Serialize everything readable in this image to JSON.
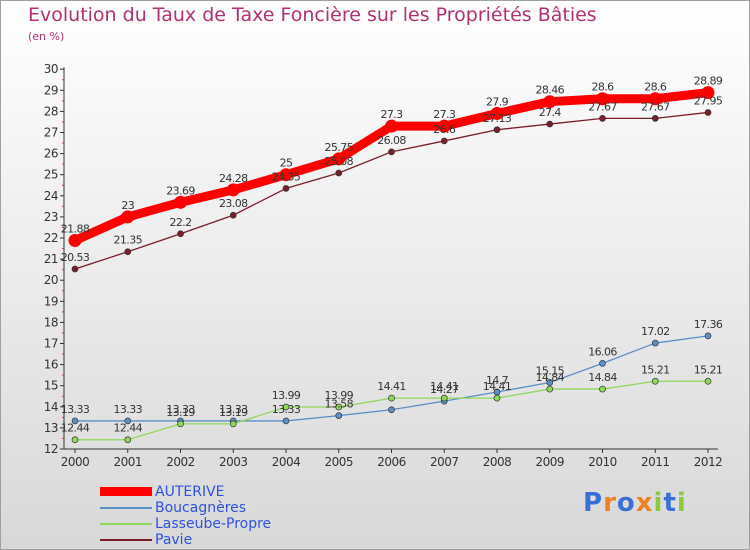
{
  "chart_data": {
    "type": "line",
    "title": "Evolution du Taux de Taxe Foncière sur les Propriétés Bâties",
    "subtitle": "(en %)",
    "x": [
      "2000",
      "2001",
      "2002",
      "2003",
      "2004",
      "2005",
      "2006",
      "2007",
      "2008",
      "2009",
      "2010",
      "2011",
      "2012"
    ],
    "ylim": [
      12,
      30
    ],
    "yticks": [
      "12",
      "13",
      "14",
      "15",
      "16",
      "17",
      "18",
      "19",
      "20",
      "21",
      "22",
      "23",
      "24",
      "25",
      "26",
      "27",
      "28",
      "29",
      "30"
    ],
    "grid": false,
    "legend_position": "bottom-left",
    "series": [
      {
        "name": "AUTERIVE",
        "color": "#ff0000",
        "values": [
          21.88,
          23,
          23.69,
          24.28,
          25,
          25.75,
          27.3,
          27.3,
          27.9,
          28.46,
          28.6,
          28.6,
          28.89
        ],
        "labels": [
          "21.88",
          "23",
          "23.69",
          "24.28",
          "25",
          "25.75",
          "27.3",
          "27.3",
          "27.9",
          "28.46",
          "28.6",
          "28.6",
          "28.89"
        ]
      },
      {
        "name": "Boucagnères",
        "color": "#5a8fc8",
        "values": [
          13.33,
          13.33,
          13.33,
          13.33,
          13.33,
          13.58,
          13.86,
          14.27,
          14.7,
          15.15,
          16.06,
          17.02,
          17.36
        ],
        "labels": [
          "13.33",
          "13.33",
          "13.33",
          "13.33",
          "13.33",
          "13.58",
          "",
          "14.27",
          "14.7",
          "15.15",
          "16.06",
          "17.02",
          "17.36"
        ]
      },
      {
        "name": "Lasseube-Propre",
        "color": "#8ed85a",
        "values": [
          12.44,
          12.44,
          13.19,
          13.19,
          13.99,
          13.99,
          14.41,
          14.41,
          14.41,
          14.84,
          14.84,
          15.21,
          15.21
        ],
        "labels": [
          "12.44",
          "12.44",
          "13.19",
          "13.19",
          "13.99",
          "13.99",
          "14.41",
          "14.41",
          "14.41",
          "14.84",
          "14.84",
          "15.21",
          "15.21"
        ]
      },
      {
        "name": "Pavie",
        "color": "#7a1e2a",
        "values": [
          20.53,
          21.35,
          22.2,
          23.08,
          24.35,
          25.08,
          26.08,
          26.6,
          27.13,
          27.4,
          27.67,
          27.67,
          27.95
        ],
        "labels": [
          "20.53",
          "21.35",
          "22.2",
          "23.08",
          "24.35",
          "25.08",
          "26.08",
          "26.6",
          "27.13",
          "27.4",
          "27.67",
          "27.67",
          "27.95"
        ]
      }
    ]
  },
  "logo": {
    "text": "Proxiti",
    "letters": [
      [
        "P",
        "#3a6fd8"
      ],
      [
        "r",
        "#f08020"
      ],
      [
        "o",
        "#3a6fd8"
      ],
      [
        "x",
        "#f08020"
      ],
      [
        "i",
        "#8ec840"
      ],
      [
        "t",
        "#3a6fd8"
      ],
      [
        "i",
        "#8ec840"
      ]
    ]
  }
}
